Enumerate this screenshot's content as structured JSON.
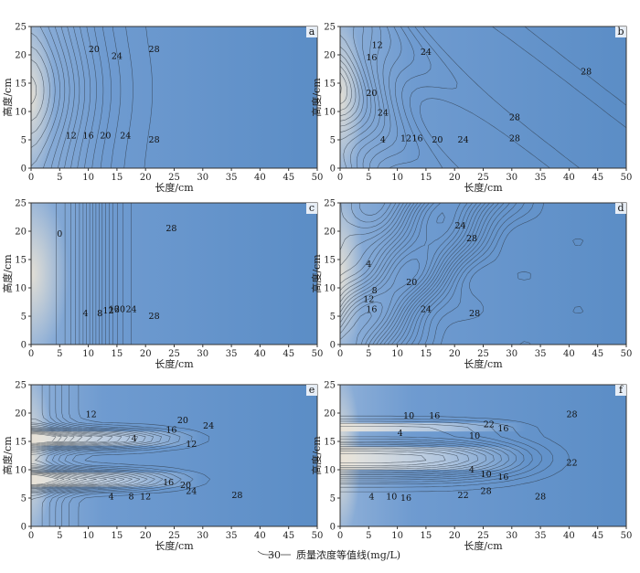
{
  "figure": {
    "panels": [
      {
        "id": "a",
        "label": "a",
        "xlabel": "长度/cm",
        "ylabel": "高度/cm",
        "contour_labels": [
          "20",
          "24",
          "28",
          "12",
          "16",
          "20",
          "24",
          "28"
        ]
      },
      {
        "id": "b",
        "label": "b",
        "xlabel": "长度/cm",
        "ylabel": "高度/cm",
        "contour_labels": [
          "12",
          "16",
          "24",
          "28",
          "20",
          "24",
          "28",
          "4",
          "12",
          "16",
          "20",
          "24",
          "28"
        ]
      },
      {
        "id": "c",
        "label": "c",
        "xlabel": "长度/cm",
        "ylabel": "高度/cm",
        "contour_labels": [
          "0",
          "28",
          "4",
          "8",
          "12",
          "16",
          "20",
          "24",
          "28"
        ]
      },
      {
        "id": "d",
        "label": "d",
        "xlabel": "长度/cm",
        "ylabel": "高度/cm",
        "contour_labels": [
          "24",
          "28",
          "4",
          "8",
          "12",
          "16",
          "20",
          "24",
          "28"
        ]
      },
      {
        "id": "e",
        "label": "e",
        "xlabel": "长度/cm",
        "ylabel": "高度/cm",
        "contour_labels": [
          "12",
          "20",
          "24",
          "16",
          "4",
          "12",
          "16",
          "20",
          "24",
          "4",
          "8",
          "12",
          "28"
        ]
      },
      {
        "id": "f",
        "label": "f",
        "xlabel": "长度/cm",
        "ylabel": "高度/cm",
        "contour_labels": [
          "10",
          "16",
          "22",
          "10",
          "16",
          "28",
          "4",
          "4",
          "10",
          "16",
          "22",
          "4",
          "10",
          "16",
          "22",
          "28",
          "28"
        ]
      }
    ],
    "x_ticks": [
      "0",
      "5",
      "10",
      "15",
      "20",
      "25",
      "30",
      "35",
      "40",
      "45",
      "50"
    ],
    "y_ticks": [
      "0",
      "5",
      "10",
      "15",
      "20",
      "25"
    ],
    "x_range": [
      0,
      50
    ],
    "y_range": [
      0,
      25
    ],
    "legend": {
      "sample_value": "30",
      "text": "质量浓度等值线(mg/L)"
    }
  },
  "colors": {
    "field": "#5f8fc4",
    "source": "#d9d4c8",
    "contour": "#2f3a46"
  }
}
